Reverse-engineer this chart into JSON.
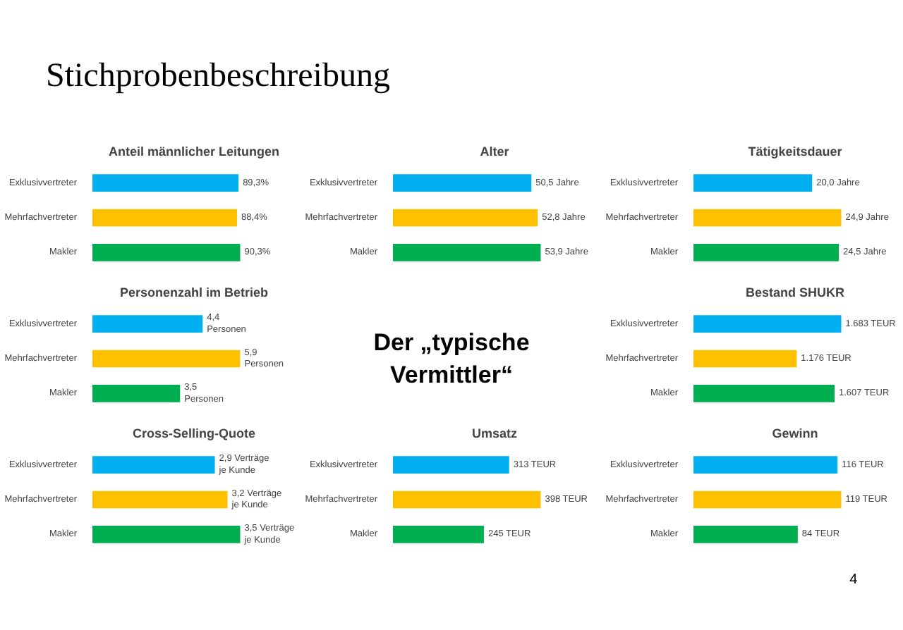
{
  "chart_data": [
    {
      "type": "other",
      "title": "Stichprobenbeschreibung",
      "annotations": [
        "4"
      ]
    },
    {
      "type": "bar",
      "orientation": "horizontal",
      "title": "Anteil männlicher Leitungen",
      "categories": [
        "Exklusivvertreter",
        "Mehrfachvertreter",
        "Makler"
      ],
      "values": [
        89.3,
        88.4,
        90.3
      ],
      "value_labels": [
        "89,3%",
        "88,4%",
        "90,3%"
      ],
      "colors": [
        "#00b0f0",
        "#ffc000",
        "#00b050"
      ],
      "tick_labels": "y"
    },
    {
      "type": "bar",
      "orientation": "horizontal",
      "title": "Alter",
      "categories": [
        "Exklusivvertreter",
        "Mehrfachvertreter",
        "Makler"
      ],
      "values": [
        50.5,
        52.8,
        53.9
      ],
      "value_labels": [
        "50,5 Jahre",
        "52,8 Jahre",
        "53,9 Jahre"
      ],
      "colors": [
        "#00b0f0",
        "#ffc000",
        "#00b050"
      ],
      "tick_labels": "y"
    },
    {
      "type": "bar",
      "orientation": "horizontal",
      "title": "Tätigkeitsdauer",
      "categories": [
        "Exklusivvertreter",
        "Mehrfachvertreter",
        "Makler"
      ],
      "values": [
        20.0,
        24.9,
        24.5
      ],
      "value_labels": [
        "20,0 Jahre",
        "24,9 Jahre",
        "24,5 Jahre"
      ],
      "colors": [
        "#00b0f0",
        "#ffc000",
        "#00b050"
      ],
      "tick_labels": "y"
    },
    {
      "type": "bar",
      "orientation": "horizontal",
      "title": "Personenzahl im Betrieb",
      "categories": [
        "Exklusivvertreter",
        "Mehrfachvertreter",
        "Makler"
      ],
      "values": [
        4.4,
        5.9,
        3.5
      ],
      "value_labels": [
        "4,4\nPersonen",
        "5,9\nPersonen",
        "3,5\nPersonen"
      ],
      "colors": [
        "#00b0f0",
        "#ffc000",
        "#00b050"
      ],
      "tick_labels": "y"
    },
    {
      "type": "other",
      "title": "Der „typische\nVermittler“"
    },
    {
      "type": "bar",
      "orientation": "horizontal",
      "title": "Bestand SHUKR",
      "categories": [
        "Exklusivvertreter",
        "Mehrfachvertreter",
        "Makler"
      ],
      "values": [
        1683,
        1176,
        1607
      ],
      "value_labels": [
        "1.683 TEUR",
        "1.176 TEUR",
        "1.607 TEUR"
      ],
      "colors": [
        "#00b0f0",
        "#ffc000",
        "#00b050"
      ],
      "tick_labels": "y"
    },
    {
      "type": "bar",
      "orientation": "horizontal",
      "title": "Cross-Selling-Quote",
      "categories": [
        "Exklusivvertreter",
        "Mehrfachvertreter",
        "Makler"
      ],
      "values": [
        2.9,
        3.2,
        3.5
      ],
      "value_labels": [
        "2,9 Verträge\nje Kunde",
        "3,2 Verträge\nje Kunde",
        "3,5 Verträge\nje Kunde"
      ],
      "colors": [
        "#00b0f0",
        "#ffc000",
        "#00b050"
      ],
      "tick_labels": "y"
    },
    {
      "type": "bar",
      "orientation": "horizontal",
      "title": "Umsatz",
      "categories": [
        "Exklusivvertreter",
        "Mehrfachvertreter",
        "Makler"
      ],
      "values": [
        313,
        398,
        245
      ],
      "value_labels": [
        "313 TEUR",
        "398 TEUR",
        "245 TEUR"
      ],
      "colors": [
        "#00b0f0",
        "#ffc000",
        "#00b050"
      ],
      "tick_labels": "y"
    },
    {
      "type": "bar",
      "orientation": "horizontal",
      "title": "Gewinn",
      "categories": [
        "Exklusivvertreter",
        "Mehrfachvertreter",
        "Makler"
      ],
      "values": [
        116,
        119,
        84
      ],
      "value_labels": [
        "116 TEUR",
        "119 TEUR",
        "84 TEUR"
      ],
      "colors": [
        "#00b0f0",
        "#ffc000",
        "#00b050"
      ],
      "tick_labels": "y"
    }
  ]
}
